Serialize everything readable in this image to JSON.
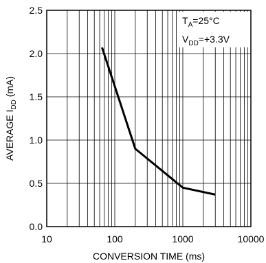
{
  "chart_data": {
    "type": "line",
    "title": "",
    "xlabel": "CONVERSION TIME (ms)",
    "ylabel": {
      "prefix": "AVERAGE I",
      "sub": "DD",
      "suffix": " (mA)"
    },
    "xscale": "log",
    "xlim": [
      10,
      10000
    ],
    "ylim": [
      0,
      2.5
    ],
    "grid": true,
    "xticks": [
      10,
      100,
      1000,
      10000
    ],
    "xtick_labels": [
      "10",
      "100",
      "1000",
      "10000"
    ],
    "yticks": [
      0,
      0.5,
      1.0,
      1.5,
      2.0,
      2.5
    ],
    "ytick_labels": [
      "0.0",
      "0.5",
      "1.0",
      "1.5",
      "2.0",
      "2.5"
    ],
    "series": [
      {
        "x": [
          65,
          200,
          1000,
          3000
        ],
        "y": [
          2.07,
          0.9,
          0.45,
          0.37
        ]
      }
    ],
    "annotations": [
      {
        "main": "T",
        "sub": "A",
        "rest": "=25°C"
      },
      {
        "main": "V",
        "sub": "DD",
        "rest": "=+3.3V"
      }
    ]
  }
}
